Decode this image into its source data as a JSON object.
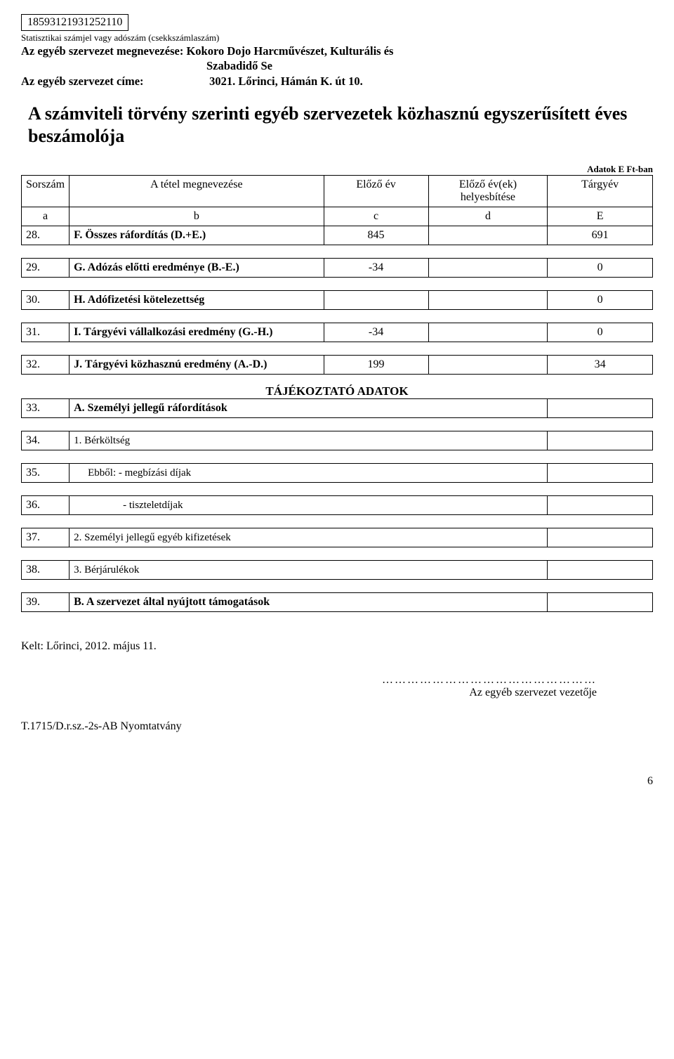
{
  "header": {
    "stat_number": "18593121931252110",
    "stat_label": "Statisztikai számjel vagy adószám (csekkszámlaszám)",
    "org_name_label": "Az egyéb szervezet megnevezése:",
    "org_name": "Kokoro Dojo Harcművészet, Kulturális és Szabadidő Se",
    "org_addr_label": "Az egyéb szervezet címe:",
    "org_addr": "3021. Lőrinci, Hámán K. út 10."
  },
  "title": "A számviteli törvény szerinti egyéb szervezetek közhasznú egyszerűsített éves beszámolója",
  "data_note": "Adatok E Ft-ban",
  "table": {
    "head": {
      "sorszam": "Sorszám",
      "megnev": "A tétel megnevezése",
      "elozo": "Előző év",
      "helyesb": "Előző év(ek) helyesbítése",
      "targyev": "Tárgyév"
    },
    "subhead": {
      "a": "a",
      "b": "b",
      "c": "c",
      "d": "d",
      "e": "E"
    },
    "rows": [
      {
        "n": "28.",
        "label": "F. Összes ráfordítás (D.+E.)",
        "bold": true,
        "c": "845",
        "d": "",
        "e": "691"
      },
      {
        "n": "29.",
        "label": "G. Adózás előtti eredménye (B.-E.)",
        "bold": true,
        "c": "-34",
        "d": "",
        "e": "0"
      },
      {
        "n": "30.",
        "label": "H. Adófizetési kötelezettség",
        "bold": true,
        "c": "",
        "d": "",
        "e": "0"
      },
      {
        "n": "31.",
        "label": "I. Tárgyévi vállalkozási eredmény (G.-H.)",
        "bold": true,
        "c": "-34",
        "d": "",
        "e": "0"
      },
      {
        "n": "32.",
        "label": "J. Tárgyévi közhasznú eredmény (A.-D.)",
        "bold": true,
        "c": "199",
        "d": "",
        "e": "34"
      }
    ],
    "info_title": "TÁJÉKOZTATÓ ADATOK",
    "info_rows": [
      {
        "n": "33.",
        "label": "A. Személyi jellegű ráfordítások",
        "bold": true,
        "c": "",
        "d": "",
        "e": ""
      },
      {
        "n": "34.",
        "label": "1. Bérköltség",
        "bold": false,
        "c": "",
        "d": "",
        "e": ""
      },
      {
        "n": "35.",
        "label": "Ebből: - megbízási díjak",
        "bold": false,
        "indent": 20,
        "c": "",
        "d": "",
        "e": ""
      },
      {
        "n": "36.",
        "label": "- tiszteletdíjak",
        "bold": false,
        "indent": 70,
        "c": "",
        "d": "",
        "e": ""
      },
      {
        "n": "37.",
        "label": "2. Személyi jellegű egyéb kifizetések",
        "bold": false,
        "c": "",
        "d": "",
        "e": ""
      },
      {
        "n": "38.",
        "label": "3. Bérjárulékok",
        "bold": false,
        "c": "",
        "d": "",
        "e": ""
      },
      {
        "n": "39.",
        "label": "B. A szervezet által nyújtott támogatások",
        "bold": true,
        "c": "",
        "d": "",
        "e": ""
      }
    ]
  },
  "footer": {
    "date": "Kelt: Lőrinci, 2012. május 11.",
    "dots": "……………………………………………",
    "sign": "Az egyéb szervezet vezetője",
    "form": "T.1715/D.r.sz.-2s-AB Nyomtatvány",
    "page": "6"
  },
  "style": {
    "bg": "#ffffff",
    "text": "#000000",
    "border": "#000000",
    "font": "Times New Roman"
  }
}
